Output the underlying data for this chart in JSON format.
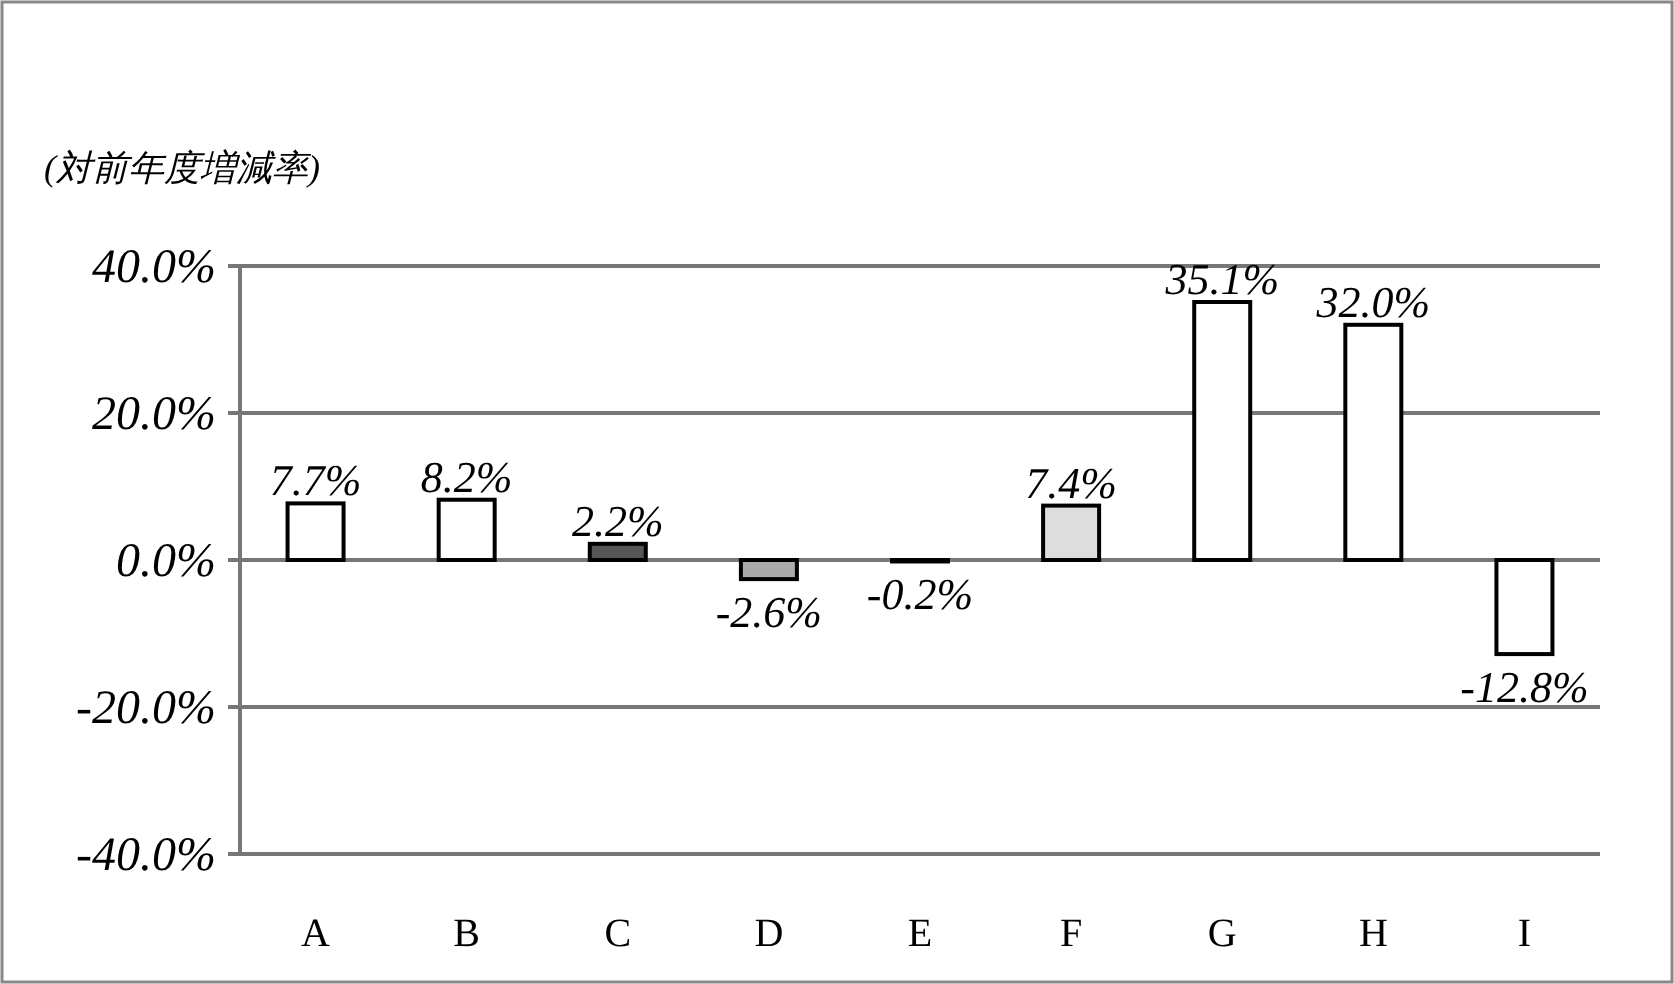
{
  "chart_data": {
    "type": "bar",
    "ylabel": "(対前年度増減率)",
    "categories": [
      "A",
      "B",
      "C",
      "D",
      "E",
      "F",
      "G",
      "H",
      "I"
    ],
    "values": [
      7.7,
      8.2,
      2.2,
      -2.6,
      -0.2,
      7.4,
      35.1,
      32.0,
      -12.8
    ],
    "colors": [
      "#ffffff",
      "#ffffff",
      "#555555",
      "#aaaaaa",
      "#ffffff",
      "#dddddd",
      "#ffffff",
      "#ffffff",
      "#ffffff"
    ],
    "value_labels": [
      "7.7%",
      "8.2%",
      "2.2%",
      "-2.6%",
      "-0.2%",
      "7.4%",
      "35.1%",
      "32.0%",
      "-12.8%"
    ],
    "ylim": [
      -40,
      40
    ],
    "yticks": [
      {
        "value": -40,
        "label": "-40.0%"
      },
      {
        "value": -20,
        "label": "-20.0%"
      },
      {
        "value": 0,
        "label": "0.0%"
      },
      {
        "value": 20,
        "label": "20.0%"
      },
      {
        "value": 40,
        "label": "40.0%"
      }
    ],
    "grid": "y"
  }
}
